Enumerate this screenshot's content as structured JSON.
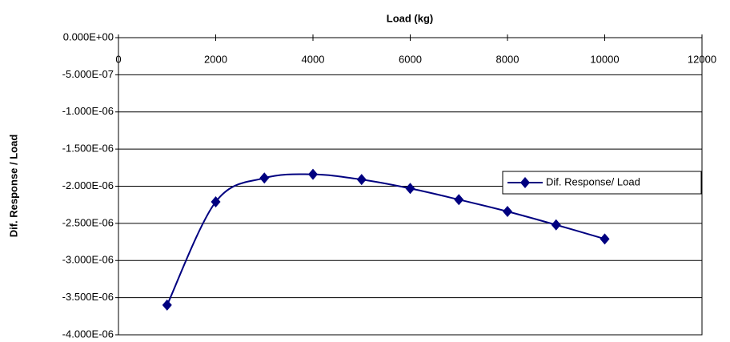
{
  "chart_data": {
    "type": "line",
    "x_label": "Load (kg)",
    "y_label": "Dif. Response / Load",
    "x": [
      1000,
      2000,
      3000,
      4000,
      5000,
      6000,
      7000,
      8000,
      9000,
      10000
    ],
    "series": [
      {
        "name": "Dif. Response/ Load",
        "color": "#000080",
        "values": [
          -3.6e-06,
          -2.21e-06,
          -1.89e-06,
          -1.84e-06,
          -1.91e-06,
          -2.03e-06,
          -2.18e-06,
          -2.34e-06,
          -2.52e-06,
          -2.71e-06
        ]
      }
    ],
    "xlim": [
      0,
      12000
    ],
    "xticks": [
      0,
      2000,
      4000,
      6000,
      8000,
      10000,
      12000
    ],
    "ylim": [
      -4e-06,
      0
    ],
    "yticks": [
      {
        "value": 0,
        "label": "0.000E+00"
      },
      {
        "value": -5e-07,
        "label": "-5.000E-07"
      },
      {
        "value": -1e-06,
        "label": "-1.000E-06"
      },
      {
        "value": -1.5e-06,
        "label": "-1.500E-06"
      },
      {
        "value": -2e-06,
        "label": "-2.000E-06"
      },
      {
        "value": -2.5e-06,
        "label": "-2.500E-06"
      },
      {
        "value": -3e-06,
        "label": "-3.000E-06"
      },
      {
        "value": -3.5e-06,
        "label": "-3.500E-06"
      },
      {
        "value": -4e-06,
        "label": "-4.000E-06"
      }
    ],
    "grid": true,
    "legend": "right"
  }
}
